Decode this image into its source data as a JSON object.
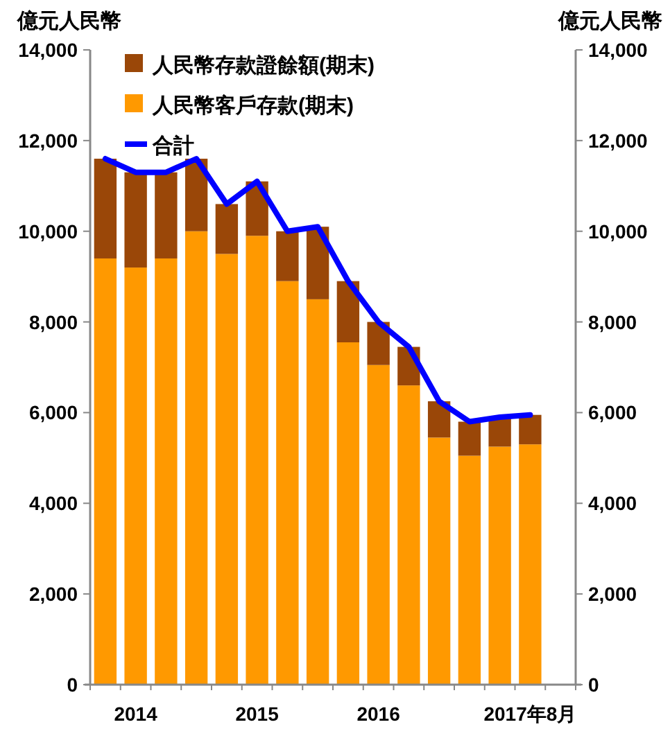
{
  "chart_data": {
    "type": "bar",
    "stacked": true,
    "ylabel": "億元人民幣",
    "y2label": "億元人民幣",
    "categories": [
      null,
      "2014",
      null,
      null,
      null,
      "2015",
      null,
      null,
      null,
      "2016",
      null,
      null,
      null,
      null,
      "2017年8月"
    ],
    "series": [
      {
        "name": "人民幣客戶存款(期末)",
        "color": "#ff9900",
        "values": [
          9400,
          9200,
          9400,
          10000,
          9500,
          9900,
          8900,
          8500,
          7550,
          7050,
          6600,
          5450,
          5050,
          5250,
          5300
        ]
      },
      {
        "name": "人民幣存款證餘額(期末)",
        "color": "#9a4708",
        "values": [
          2200,
          2100,
          1900,
          1600,
          1100,
          1200,
          1100,
          1600,
          1350,
          950,
          850,
          800,
          750,
          650,
          650
        ]
      },
      {
        "name": "合計",
        "type": "line",
        "color": "#0000ff",
        "values": [
          11600,
          11300,
          11300,
          11600,
          10600,
          11100,
          10000,
          10100,
          8900,
          8000,
          7450,
          6250,
          5800,
          5900,
          5950
        ]
      }
    ],
    "ylim": [
      0,
      14000
    ],
    "yticks": [
      0,
      {
        "value": 2000,
        "label": "2,000"
      },
      {
        "value": 4000,
        "label": "4,000"
      },
      {
        "value": 6000,
        "label": "6,000"
      },
      {
        "value": 8000,
        "label": "8,000"
      },
      {
        "value": 10000,
        "label": "10,000"
      },
      {
        "value": 12000,
        "label": "12,000"
      },
      {
        "value": 14000,
        "label": "14,000"
      }
    ],
    "y2lim": [
      0,
      14000
    ],
    "y2ticks": [
      0,
      {
        "value": 2000,
        "label": "2,000"
      },
      {
        "value": 4000,
        "label": "4,000"
      },
      {
        "value": 6000,
        "label": "6,000"
      },
      {
        "value": 8000,
        "label": "8,000"
      },
      {
        "value": 10000,
        "label": "10,000"
      },
      {
        "value": 12000,
        "label": "12,000"
      },
      {
        "value": 14000,
        "label": "14,000"
      }
    ],
    "legend": "top left",
    "grid": false
  }
}
